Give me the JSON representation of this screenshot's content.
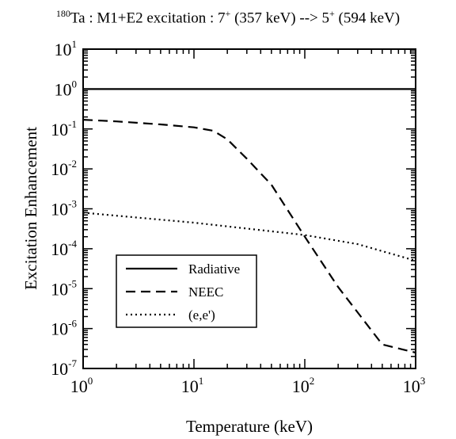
{
  "title": {
    "isotope_mass": "180",
    "text_1": "Ta : M1+E2 excitation : 7",
    "sup_1": "+",
    "text_2": " (357 keV) --> 5",
    "sup_2": "+",
    "text_3": " (594 keV)"
  },
  "chart_data": {
    "type": "line",
    "title": "180Ta : M1+E2 excitation : 7+ (357 keV) --> 5+ (594 keV)",
    "xlabel": "Temperature (keV)",
    "ylabel": "Excitation Enhancement",
    "xscale": "log",
    "yscale": "log",
    "xlim": [
      1,
      1000
    ],
    "ylim": [
      1e-07,
      10
    ],
    "x_ticks": [
      {
        "base": "10",
        "exp": "0"
      },
      {
        "base": "10",
        "exp": "1"
      },
      {
        "base": "10",
        "exp": "2"
      },
      {
        "base": "10",
        "exp": "3"
      }
    ],
    "y_ticks": [
      {
        "base": "10",
        "exp": "1"
      },
      {
        "base": "10",
        "exp": "0"
      },
      {
        "base": "10",
        "exp": "-1"
      },
      {
        "base": "10",
        "exp": "-2"
      },
      {
        "base": "10",
        "exp": "-3"
      },
      {
        "base": "10",
        "exp": "-4"
      },
      {
        "base": "10",
        "exp": "-5"
      },
      {
        "base": "10",
        "exp": "-6"
      },
      {
        "base": "10",
        "exp": "-7"
      }
    ],
    "legend_position": "lower-left",
    "series": [
      {
        "name": "Radiative",
        "style": "solid",
        "color": "#000000",
        "x": [
          1,
          1000
        ],
        "y": [
          1,
          1
        ]
      },
      {
        "name": "NEEC",
        "style": "dashed",
        "color": "#000000",
        "x": [
          1,
          2,
          5,
          10,
          15,
          20,
          30,
          50,
          100,
          200,
          500,
          1000
        ],
        "y": [
          0.17,
          0.155,
          0.13,
          0.11,
          0.09,
          0.055,
          0.018,
          0.004,
          0.0002,
          1.1e-05,
          4e-07,
          2.5e-07
        ]
      },
      {
        "name": "(e,e')",
        "style": "dotted",
        "color": "#000000",
        "x": [
          1,
          10,
          100,
          300,
          1000
        ],
        "y": [
          0.0008,
          0.00045,
          0.00022,
          0.00013,
          5e-05
        ]
      }
    ]
  }
}
